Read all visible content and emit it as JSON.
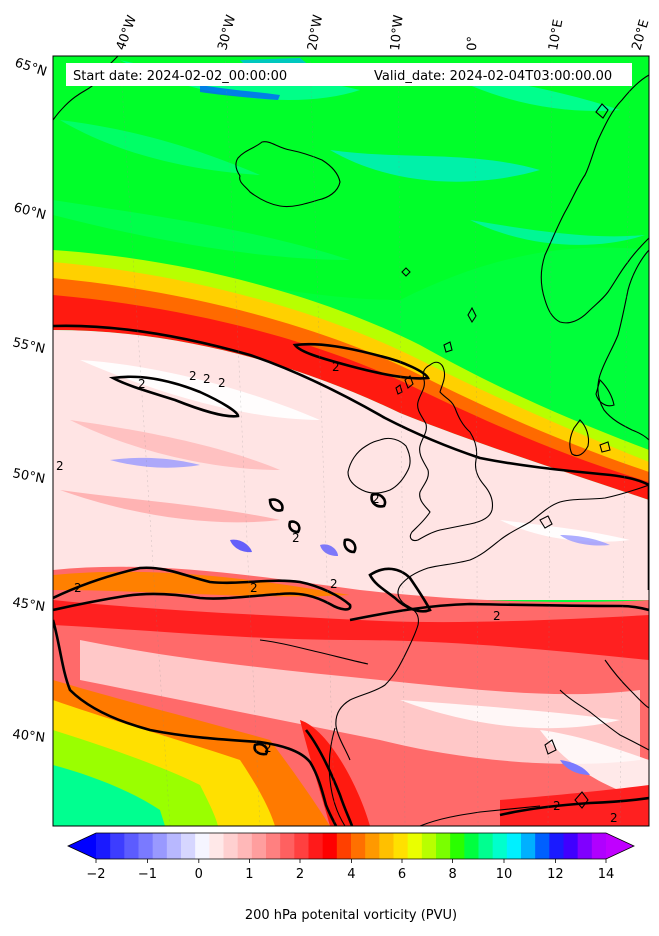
{
  "info": {
    "start_date": "Start date: 2024-02-02_00:00:00",
    "valid_date": "Valid_date: 2024-02-04T03:00:00.00"
  },
  "lon_labels": [
    "40°W",
    "30°W",
    "20°W",
    "10°W",
    "0°",
    "10°E",
    "20°E"
  ],
  "lat_labels": [
    "65°N",
    "60°N",
    "55°N",
    "50°N",
    "45°N",
    "40°N"
  ],
  "contour_label": "2",
  "colorbar": {
    "title": "200 hPa potenital vorticity (PVU)",
    "tick_labels": [
      "−2",
      "−1",
      "0",
      "1",
      "2",
      "4",
      "6",
      "8",
      "10",
      "12",
      "14"
    ],
    "colors": [
      "#1a1aff",
      "#3d3dff",
      "#5c5cff",
      "#7a7aff",
      "#9999ff",
      "#b8b8ff",
      "#d6d6ff",
      "#f5f5ff",
      "#ffe8e8",
      "#ffd0d0",
      "#ffb8b8",
      "#ff9e9e",
      "#ff8080",
      "#ff6060",
      "#ff4040",
      "#ff1a1a",
      "#ff0000",
      "#ff4000",
      "#ff7000",
      "#ff9900",
      "#ffc000",
      "#ffe000",
      "#eaff00",
      "#b8ff00",
      "#7aff00",
      "#2aff00",
      "#00ff40",
      "#00ff90",
      "#00ffcc",
      "#00f0ff",
      "#00b0ff",
      "#0060ff",
      "#1a1aff",
      "#4000ff",
      "#8000ff",
      "#b000ff"
    ]
  }
}
